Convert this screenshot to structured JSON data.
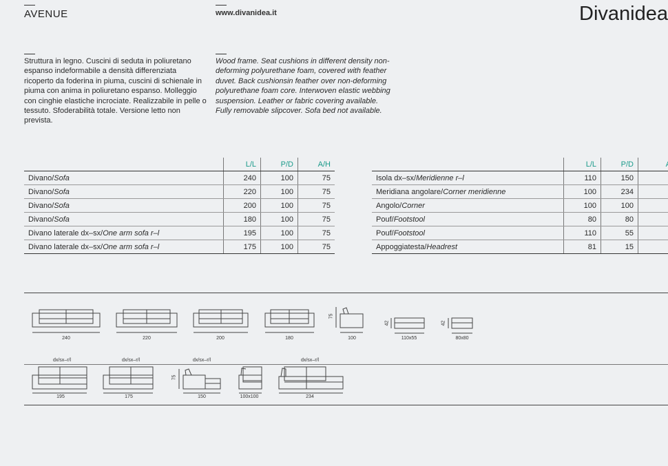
{
  "header": {
    "title": "AVENUE",
    "url": "www.divanidea.it",
    "logo": "Divanidea"
  },
  "description": {
    "it": "Struttura in legno. Cuscini di seduta in poliuretano espanso indeformabile a densità differenziata ricoperto da foderina in piuma, cuscini di schienale in piuma con anima in poliuretano espanso. Molleggio con cinghie elastiche incrociate. Realizzabile in pelle o tessuto. Sfoderabilità totale. Versione letto non prevista.",
    "en": "Wood frame. Seat cushions in different density non-deforming polyurethane foam, covered with feather duvet. Back cushionsin feather over non-deforming polyurethane foam core. Interwoven elastic webbing suspension. Leather or fabric covering available. Fully removable slipcover. Sofa bed not available."
  },
  "table_left": {
    "headers": [
      "L/L",
      "P/D",
      "A/H"
    ],
    "rows": [
      {
        "it": "Divano/",
        "en": "Sofa",
        "l": "240",
        "p": "100",
        "h": "75"
      },
      {
        "it": "Divano/",
        "en": "Sofa",
        "l": "220",
        "p": "100",
        "h": "75"
      },
      {
        "it": "Divano/",
        "en": "Sofa",
        "l": "200",
        "p": "100",
        "h": "75"
      },
      {
        "it": "Divano/",
        "en": "Sofa",
        "l": "180",
        "p": "100",
        "h": "75"
      },
      {
        "it": "Divano laterale dx–sx/",
        "en": "One arm sofa r–l",
        "l": "195",
        "p": "100",
        "h": "75"
      },
      {
        "it": "Divano laterale dx–sx/",
        "en": "One arm sofa r–l",
        "l": "175",
        "p": "100",
        "h": "75"
      }
    ]
  },
  "table_right": {
    "headers": [
      "L/L",
      "P/D",
      "A"
    ],
    "rows": [
      {
        "it": "Isola dx–sx/",
        "en": "Meridienne r–l",
        "l": "110",
        "p": "150"
      },
      {
        "it": "Meridiana angolare/",
        "en": "Corner meridienne",
        "l": "100",
        "p": "234"
      },
      {
        "it": "Angolo/",
        "en": "Corner",
        "l": "100",
        "p": "100"
      },
      {
        "it": "Pouf/",
        "en": "Footstool",
        "l": "80",
        "p": "80"
      },
      {
        "it": "Pouf/",
        "en": "Footstool",
        "l": "110",
        "p": "55"
      },
      {
        "it": "Appoggiatesta/",
        "en": "Headrest",
        "l": "81",
        "p": "15"
      }
    ]
  },
  "drawings": {
    "row1": [
      "240",
      "220",
      "200",
      "180",
      "100",
      "110x55",
      "80x80"
    ],
    "heights": [
      "75",
      "42",
      "42"
    ],
    "row2": [
      "195",
      "175",
      "150",
      "100x100",
      "234"
    ],
    "side_label": "dx/sx–r/l",
    "height2": "75"
  }
}
